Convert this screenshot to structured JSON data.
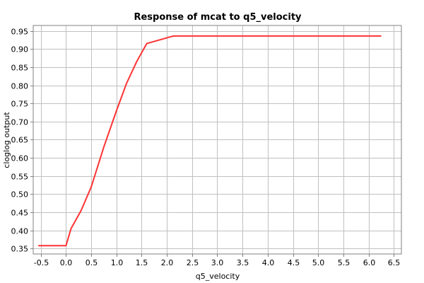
{
  "chart_data": {
    "type": "line",
    "title": "Response of mcat to q5_velocity",
    "xlabel": "q5_velocity",
    "ylabel": "cloglog output",
    "xlim": [
      -0.65,
      6.65
    ],
    "ylim": [
      0.335,
      0.965
    ],
    "x_ticks": [
      -0.5,
      0.0,
      0.5,
      1.0,
      1.5,
      2.0,
      2.5,
      3.0,
      3.5,
      4.0,
      4.5,
      5.0,
      5.5,
      6.0,
      6.5
    ],
    "x_tick_labels": [
      "-0.5",
      "0.0",
      "0.5",
      "1.0",
      "1.5",
      "2.0",
      "2.5",
      "3.0",
      "3.5",
      "4.0",
      "4.5",
      "5.0",
      "5.5",
      "6.0",
      "6.5"
    ],
    "y_ticks": [
      0.35,
      0.4,
      0.45,
      0.5,
      0.55,
      0.6,
      0.65,
      0.7,
      0.75,
      0.8,
      0.85,
      0.9,
      0.95
    ],
    "y_tick_labels": [
      "0.35",
      "0.40",
      "0.45",
      "0.50",
      "0.55",
      "0.60",
      "0.65",
      "0.70",
      "0.75",
      "0.80",
      "0.85",
      "0.90",
      "0.95"
    ],
    "grid": true,
    "series": [
      {
        "color": "#ff3333",
        "x": [
          -0.55,
          0.0,
          0.1,
          0.3,
          0.5,
          0.75,
          1.0,
          1.2,
          1.4,
          1.6,
          2.1,
          2.15,
          6.25
        ],
        "y": [
          0.358,
          0.358,
          0.405,
          0.455,
          0.52,
          0.63,
          0.73,
          0.805,
          0.865,
          0.915,
          0.935,
          0.936,
          0.936
        ]
      }
    ]
  }
}
